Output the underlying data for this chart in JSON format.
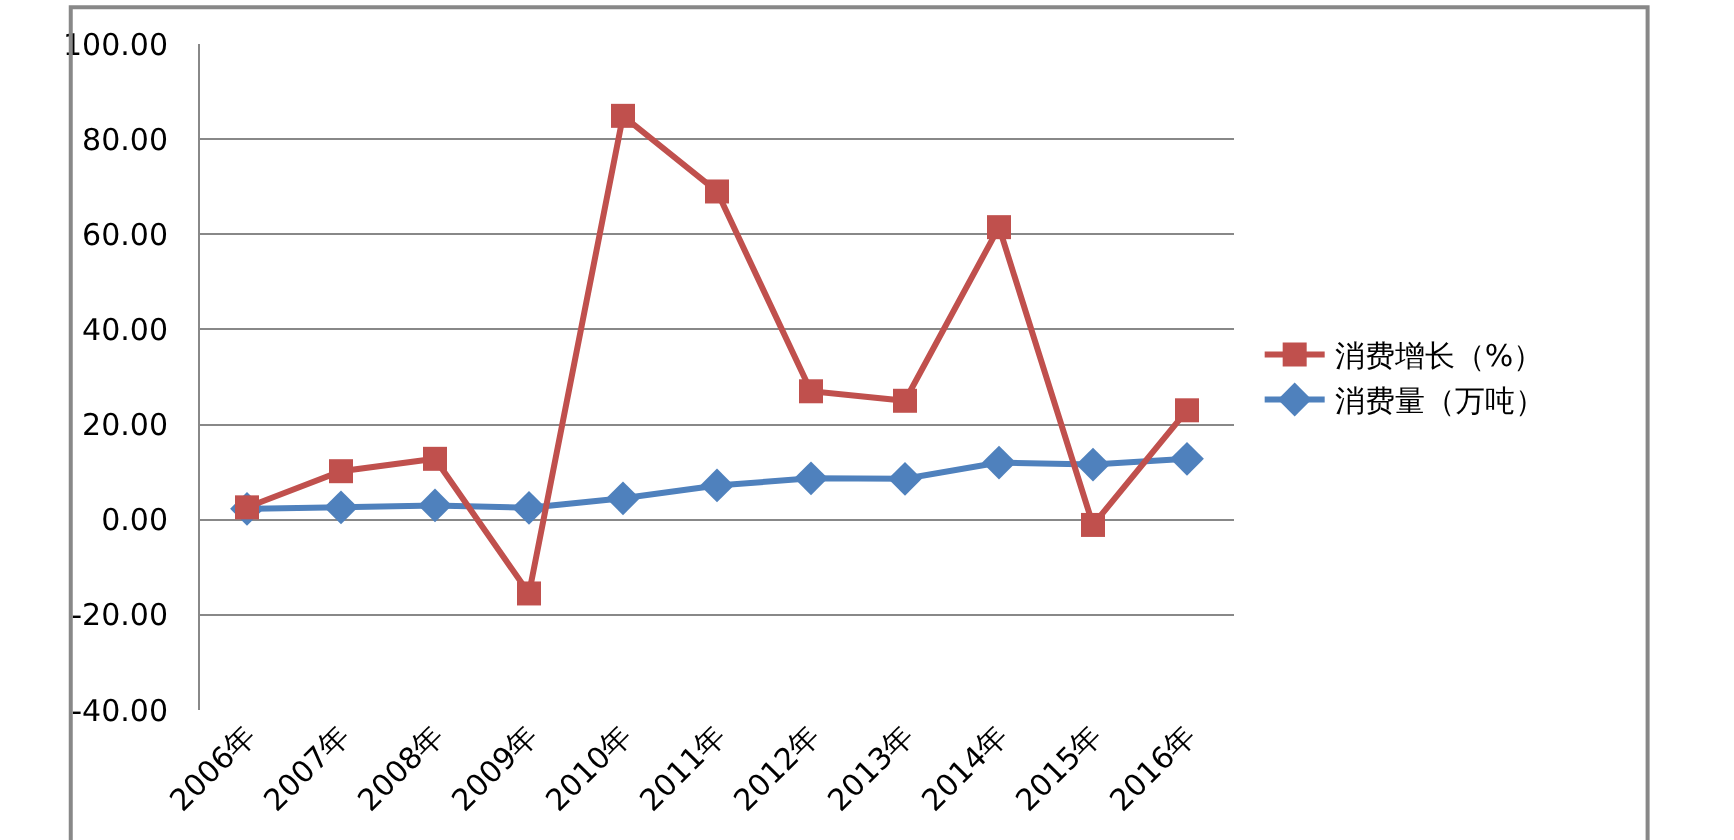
{
  "chart_data": {
    "type": "line",
    "categories": [
      "2006年",
      "2007年",
      "2008年",
      "2009年",
      "2010年",
      "2011年",
      "2012年",
      "2013年",
      "2014年",
      "2015年",
      "2016年"
    ],
    "series": [
      {
        "name": "消费增长（%）",
        "color": "#c0504d",
        "marker": "square",
        "values": [
          2.6,
          10.2,
          12.8,
          -15.5,
          84.9,
          69.0,
          27.0,
          25.0,
          61.5,
          -1.1,
          23.0
        ]
      },
      {
        "name": "消费量（万吨）",
        "color": "#4f81bd",
        "marker": "diamond",
        "values": [
          2.3,
          2.6,
          3.0,
          2.5,
          4.5,
          7.2,
          8.7,
          8.6,
          12.0,
          11.6,
          12.8
        ]
      }
    ],
    "ylim": [
      -40,
      100
    ],
    "yticks": [
      {
        "value": -40,
        "label": "-40.00"
      },
      {
        "value": -20,
        "label": "-20.00"
      },
      {
        "value": 0,
        "label": "0.00"
      },
      {
        "value": 20,
        "label": "20.00"
      },
      {
        "value": 40,
        "label": "40.00"
      },
      {
        "value": 60,
        "label": "60.00"
      },
      {
        "value": 80,
        "label": "80.00"
      },
      {
        "value": 100,
        "label": "100.00"
      }
    ],
    "grid": "y",
    "legend": "right",
    "line_style": "solid"
  }
}
